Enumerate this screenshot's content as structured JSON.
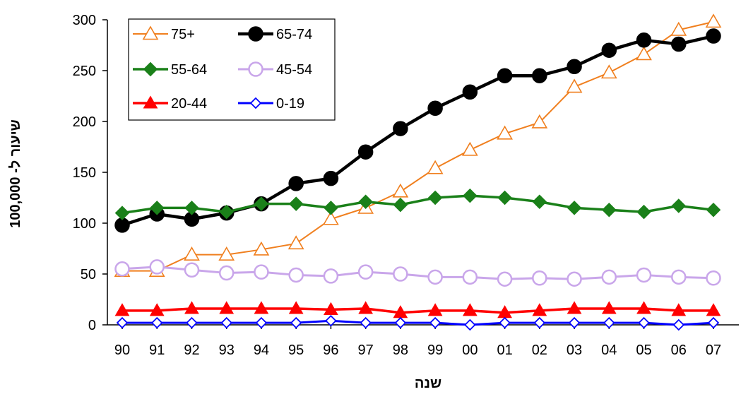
{
  "chart_data": {
    "type": "line",
    "title": "",
    "xlabel": "שנה",
    "ylabel": "שיעור ל- 100,000",
    "categories": [
      "90",
      "91",
      "92",
      "93",
      "94",
      "95",
      "96",
      "97",
      "98",
      "99",
      "00",
      "01",
      "02",
      "03",
      "04",
      "05",
      "06",
      "07"
    ],
    "ylim": [
      0,
      300
    ],
    "yticks": [
      0,
      50,
      100,
      150,
      200,
      250,
      300
    ],
    "grid": false,
    "legend": "top-left inside plot",
    "series": [
      {
        "name": "75+",
        "color": "#F07F1E",
        "marker": "triangle-open",
        "values": [
          53,
          53,
          69,
          69,
          74,
          80,
          104,
          115,
          131,
          154,
          172,
          188,
          199,
          234,
          248,
          266,
          290,
          298
        ]
      },
      {
        "name": "65-74",
        "color": "#000000",
        "marker": "circle-filled",
        "values": [
          98,
          109,
          104,
          110,
          119,
          139,
          144,
          170,
          193,
          213,
          229,
          245,
          245,
          254,
          270,
          280,
          276,
          284
        ]
      },
      {
        "name": "55-64",
        "color": "#1A8019",
        "marker": "diamond-filled",
        "values": [
          110,
          115,
          115,
          111,
          119,
          119,
          115,
          121,
          118,
          125,
          127,
          125,
          121,
          115,
          113,
          111,
          117,
          113
        ]
      },
      {
        "name": "45-54",
        "color": "#C9A6EA",
        "marker": "circle-open",
        "values": [
          55,
          57,
          54,
          51,
          52,
          49,
          48,
          52,
          50,
          47,
          47,
          45,
          46,
          45,
          47,
          49,
          47,
          46
        ]
      },
      {
        "name": "20-44",
        "color": "#FF0000",
        "marker": "triangle-filled",
        "values": [
          14,
          14,
          16,
          16,
          16,
          16,
          15,
          16,
          12,
          14,
          14,
          12,
          14,
          16,
          16,
          16,
          14,
          14
        ]
      },
      {
        "name": "0-19",
        "color": "#0000FF",
        "marker": "diamond-open",
        "values": [
          2,
          2,
          2,
          2,
          2,
          2,
          4,
          2,
          2,
          2,
          0,
          2,
          2,
          2,
          2,
          2,
          0,
          2
        ]
      }
    ]
  }
}
